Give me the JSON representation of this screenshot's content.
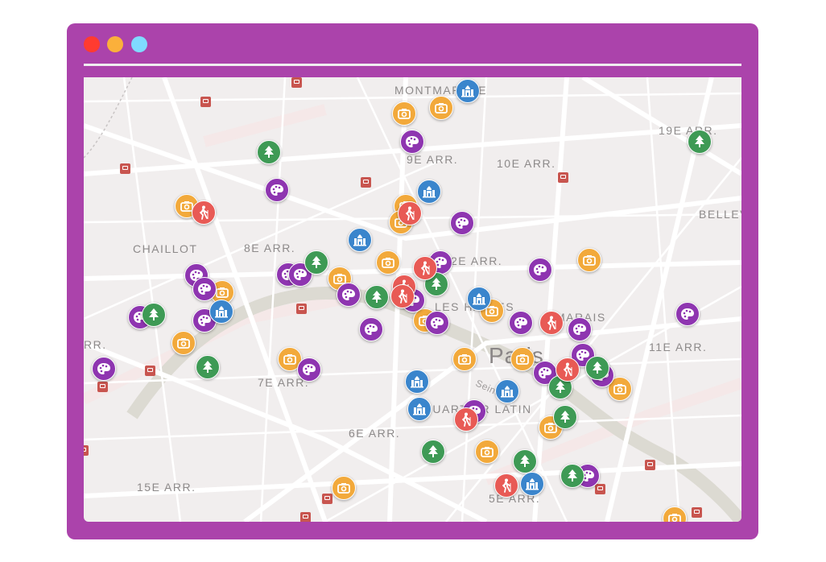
{
  "window": {
    "controls": [
      {
        "name": "close",
        "color": "#ff3b30"
      },
      {
        "name": "minimize",
        "color": "#fbb03b"
      },
      {
        "name": "maximize",
        "color": "#7fdbff"
      }
    ],
    "frame_color": "#ab43ab"
  },
  "map": {
    "labels": [
      {
        "text": "MONTMARTRE",
        "kind": "district"
      },
      {
        "text": "9E ARR.",
        "kind": "district"
      },
      {
        "text": "10E ARR.",
        "kind": "district"
      },
      {
        "text": "19E ARR.",
        "kind": "district"
      },
      {
        "text": "BELLEV",
        "kind": "district"
      },
      {
        "text": "CHAILLOT",
        "kind": "district"
      },
      {
        "text": "8E ARR.",
        "kind": "district"
      },
      {
        "text": "2E ARR.",
        "kind": "district"
      },
      {
        "text": "LES HALLES",
        "kind": "district"
      },
      {
        "text": "MARAIS",
        "kind": "district"
      },
      {
        "text": "Paris",
        "kind": "city"
      },
      {
        "text": "11E ARR.",
        "kind": "district"
      },
      {
        "text": "RR.",
        "kind": "district"
      },
      {
        "text": "7E ARR.",
        "kind": "district"
      },
      {
        "text": "QUARTIER LATIN",
        "kind": "district"
      },
      {
        "text": "6E ARR.",
        "kind": "district"
      },
      {
        "text": "15E ARR.",
        "kind": "district"
      },
      {
        "text": "5E ARR.",
        "kind": "district"
      },
      {
        "text": "Seine",
        "kind": "river"
      }
    ],
    "categories": {
      "camera": {
        "icon": "camera-icon",
        "color": "#f2a93b"
      },
      "palette": {
        "icon": "palette-icon",
        "color": "#8e35b0"
      },
      "tree": {
        "icon": "tree-icon",
        "color": "#3e9a55"
      },
      "monument": {
        "icon": "monument-icon",
        "color": "#3a85cc"
      },
      "hiker": {
        "icon": "hiker-icon",
        "color": "#e85a55"
      }
    },
    "metro_color": "#c8554f"
  }
}
